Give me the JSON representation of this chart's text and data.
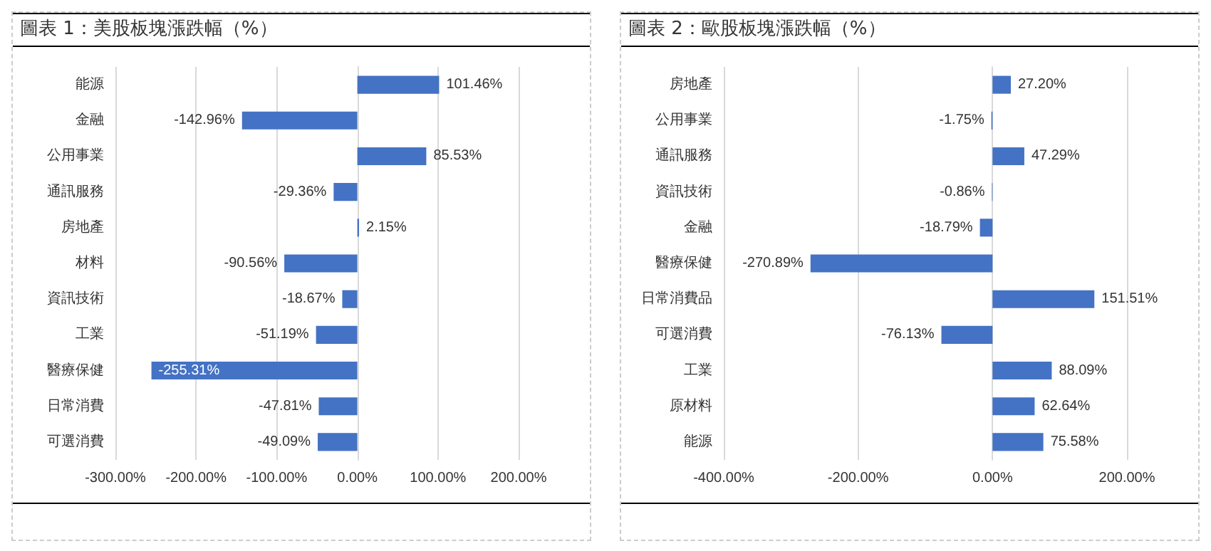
{
  "chart_data": [
    {
      "type": "bar",
      "orientation": "horizontal",
      "title": "圖表 1：美股板塊漲跌幅（%）",
      "categories": [
        "能源",
        "金融",
        "公用事業",
        "通訊服務",
        "房地產",
        "材料",
        "資訊技術",
        "工業",
        "醫療保健",
        "日常消費",
        "可選消費"
      ],
      "values": [
        101.46,
        -142.96,
        85.53,
        -29.36,
        2.15,
        -90.56,
        -18.67,
        -51.19,
        -255.31,
        -47.81,
        -49.09
      ],
      "value_labels": [
        "101.46%",
        "-142.96%",
        "85.53%",
        "-29.36%",
        "2.15%",
        "-90.56%",
        "-18.67%",
        "-51.19%",
        "-255.31%",
        "-47.81%",
        "-49.09%"
      ],
      "color": "#4472c4",
      "xlim": [
        -300,
        200
      ],
      "xticks": [
        {
          "value": -300,
          "label": "-300.00%"
        },
        {
          "value": -200,
          "label": "-200.00%"
        },
        {
          "value": -100,
          "label": "-100.00%"
        },
        {
          "value": 0,
          "label": "0.00%"
        },
        {
          "value": 100,
          "label": "100.00%"
        },
        {
          "value": 200,
          "label": "200.00%"
        }
      ],
      "grid": "x"
    },
    {
      "type": "bar",
      "orientation": "horizontal",
      "title": "圖表 2：歐股板塊漲跌幅（%）",
      "categories": [
        "房地產",
        "公用事業",
        "通訊服務",
        "資訊技術",
        "金融",
        "醫療保健",
        "日常消費品",
        "可選消費",
        "工業",
        "原材料",
        "能源"
      ],
      "values": [
        27.2,
        -1.75,
        47.29,
        -0.86,
        -18.79,
        -270.89,
        151.51,
        -76.13,
        88.09,
        62.64,
        75.58
      ],
      "value_labels": [
        "27.20%",
        "-1.75%",
        "47.29%",
        "-0.86%",
        "-18.79%",
        "-270.89%",
        "151.51%",
        "-76.13%",
        "88.09%",
        "62.64%",
        "75.58%"
      ],
      "color": "#4472c4",
      "xlim": [
        -400,
        200
      ],
      "xticks": [
        {
          "value": -400,
          "label": "-400.00%"
        },
        {
          "value": -200,
          "label": "-200.00%"
        },
        {
          "value": 0,
          "label": "0.00%"
        },
        {
          "value": 200,
          "label": "200.00%"
        }
      ],
      "grid": "x"
    }
  ]
}
